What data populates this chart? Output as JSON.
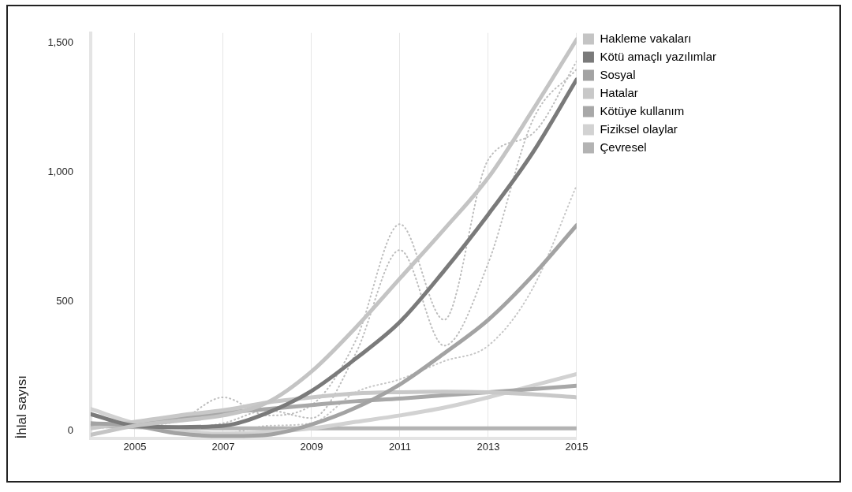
{
  "chart_data": {
    "type": "line",
    "ylabel": "İhlal sayısı",
    "x": [
      2004,
      2005,
      2006,
      2007,
      2008,
      2009,
      2010,
      2011,
      2012,
      2013,
      2014,
      2015
    ],
    "xlim": [
      2004,
      2015
    ],
    "xticks": [
      2005,
      2007,
      2009,
      2011,
      2013,
      2015
    ],
    "ylim": [
      -30,
      1540
    ],
    "yticks": [
      0,
      500,
      {
        "value": 1000,
        "label": "1,000"
      },
      {
        "value": 1500,
        "label": "1,500"
      }
    ],
    "grid": "x",
    "legend": "top right",
    "marker": "none",
    "line_style": "solid",
    "series": [
      {
        "name": "Hakleme vakaları",
        "color": "#c4c4c4",
        "values": [
          -15,
          20,
          40,
          60,
          110,
          230,
          400,
          590,
          780,
          980,
          1240,
          1515
        ]
      },
      {
        "name": "Kötü amaçlı yazılımlar",
        "color": "#7a7a7a",
        "values": [
          65,
          20,
          15,
          20,
          70,
          155,
          280,
          422,
          620,
          838,
          1075,
          1360
        ]
      },
      {
        "name": "Sosyal",
        "color": "#a3a3a3",
        "values": [
          30,
          20,
          -10,
          -20,
          -15,
          25,
          90,
          180,
          300,
          430,
          600,
          796
        ]
      },
      {
        "name": "Hatalar",
        "color": "#c8c8c8",
        "values": [
          10,
          35,
          60,
          80,
          110,
          130,
          145,
          150,
          152,
          150,
          142,
          130
        ]
      },
      {
        "name": "Kötüye kullanım",
        "color": "#a8a8a8",
        "values": [
          20,
          30,
          50,
          70,
          85,
          100,
          115,
          125,
          138,
          150,
          162,
          175
        ]
      },
      {
        "name": "Fiziksel olaylar",
        "color": "#d2d2d2",
        "values": [
          85,
          30,
          0,
          -10,
          -5,
          10,
          35,
          60,
          90,
          130,
          175,
          220
        ]
      },
      {
        "name": "Çevresel",
        "color": "#b3b3b3",
        "values": [
          20,
          15,
          12,
          10,
          10,
          10,
          10,
          10,
          10,
          10,
          10,
          10
        ]
      },
      {
        "color": "#bdbdbd",
        "line_style": "dotted",
        "values": [
          10,
          20,
          40,
          130,
          60,
          100,
          350,
          800,
          430,
          1050,
          1150,
          1430
        ]
      },
      {
        "color": "#bdbdbd",
        "line_style": "dotted",
        "values": [
          60,
          20,
          10,
          30,
          80,
          50,
          300,
          700,
          330,
          650,
          1200,
          1400
        ]
      },
      {
        "color": "#c6c6c6",
        "line_style": "dotted",
        "values": [
          20,
          30,
          0,
          -10,
          20,
          30,
          150,
          200,
          270,
          330,
          550,
          950
        ]
      }
    ]
  }
}
